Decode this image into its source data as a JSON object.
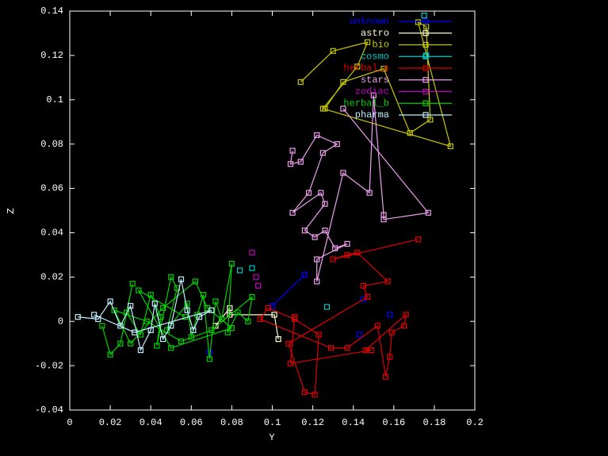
{
  "chart_data": {
    "type": "scatter",
    "x_label": "Y",
    "y_label": "Z",
    "xlim": [
      0,
      0.2
    ],
    "xticks": [
      0,
      0.02,
      0.04,
      0.06,
      0.08,
      0.1,
      0.12,
      0.14,
      0.16,
      0.18,
      0.2
    ],
    "ylim": [
      -0.04,
      0.14
    ],
    "yticks": [
      -0.04,
      -0.02,
      0,
      0.02,
      0.04,
      0.06,
      0.08,
      0.1,
      0.12,
      0.14
    ],
    "legend": "top-right",
    "series": [
      {
        "name": "unknown",
        "color": "#0000ff",
        "x": [
          0.1,
          0.116,
          null,
          0.145,
          null,
          0.158,
          null,
          0.143,
          null,
          0.069
        ],
        "values": [
          0.007,
          0.021,
          null,
          0.01,
          null,
          0.003,
          null,
          -0.006,
          null,
          -0.014
        ]
      },
      {
        "name": "astro",
        "color": "#ffffd0",
        "x": [
          0.072,
          0.079,
          0.079,
          0.101,
          0.103
        ],
        "values": [
          -0.002,
          0.006,
          0.003,
          0.003,
          -0.008
        ]
      },
      {
        "name": "bio",
        "color": "#c8c800",
        "x": [
          0.114,
          0.13,
          0.147,
          0.142,
          0.125,
          0.188,
          0.172,
          0.176,
          0.178,
          0.168,
          0.155,
          0.135,
          0.126
        ],
        "values": [
          0.108,
          0.122,
          0.126,
          0.115,
          0.096,
          0.079,
          0.135,
          0.133,
          0.091,
          0.085,
          0.114,
          0.108,
          0.096
        ]
      },
      {
        "name": "cosmo",
        "color": "#00c8c8",
        "x": [
          0.09,
          null,
          0.084,
          null,
          0.127,
          null,
          0.176,
          null,
          0.175
        ],
        "values": [
          0.024,
          null,
          0.023,
          null,
          0.0065,
          null,
          0.12,
          null,
          0.138
        ]
      },
      {
        "name": "herbal_a",
        "color": "#e00000",
        "x": [
          0.172,
          0.13,
          0.137,
          0.142,
          0.157,
          0.145,
          0.147,
          0.108,
          0.116,
          0.121,
          0.123,
          0.111,
          0.098,
          0.094,
          0.129,
          0.137,
          0.152,
          0.156,
          0.158,
          0.159,
          0.165,
          0.166,
          0.146,
          0.149,
          0.109,
          0.111
        ],
        "values": [
          0.037,
          0.028,
          0.03,
          0.031,
          0.018,
          0.016,
          0.011,
          -0.01,
          -0.032,
          -0.033,
          -0.006,
          0.001,
          0.006,
          0.001,
          -0.012,
          -0.012,
          -0.002,
          -0.025,
          -0.016,
          -0.005,
          -0.002,
          0.003,
          -0.013,
          -0.013,
          -0.019,
          0.002
        ]
      },
      {
        "name": "stars",
        "color": "#f0a0f0",
        "x": [
          0.11,
          0.109,
          0.114,
          0.122,
          0.132,
          0.125,
          0.118,
          0.11,
          0.124,
          0.126,
          0.116,
          0.121,
          0.126,
          0.131,
          0.137,
          0.122,
          0.122,
          0.135,
          0.148,
          0.15,
          0.155,
          0.155,
          0.177,
          0.135
        ],
        "values": [
          0.077,
          0.071,
          0.072,
          0.084,
          0.08,
          0.076,
          0.058,
          0.049,
          0.058,
          0.053,
          0.041,
          0.038,
          0.041,
          0.033,
          0.035,
          0.028,
          0.018,
          0.067,
          0.058,
          0.102,
          0.048,
          0.046,
          0.049,
          0.096
        ]
      },
      {
        "name": "zodiac",
        "color": "#c000c0",
        "x": [
          0.09,
          null,
          0.092,
          null,
          0.093
        ],
        "values": [
          0.031,
          null,
          0.02,
          null,
          0.016
        ]
      },
      {
        "name": "herbal_b",
        "color": "#00d000",
        "x": [
          0.016,
          0.02,
          0.025,
          0.031,
          0.028,
          0.035,
          0.04,
          0.045,
          0.043,
          0.05,
          0.053,
          0.048,
          0.058,
          0.06,
          0.063,
          0.066,
          0.069,
          0.072,
          0.075,
          0.08,
          0.078,
          0.083,
          0.088,
          0.09,
          0.07,
          0.055,
          0.038,
          0.022,
          0.03,
          0.046,
          0.062,
          0.068,
          0.08,
          0.05,
          0.034,
          0.057
        ],
        "values": [
          -0.002,
          -0.015,
          -0.01,
          0.017,
          0.004,
          -0.006,
          0.012,
          0.002,
          -0.011,
          0.02,
          0.015,
          -0.004,
          0.008,
          -0.007,
          0.003,
          0.012,
          -0.017,
          0.009,
          0.001,
          0.026,
          -0.005,
          0.004,
          0.0,
          0.011,
          -0.004,
          -0.009,
          0.0,
          0.005,
          -0.01,
          0.006,
          0.018,
          0.006,
          -0.003,
          -0.012,
          0.014,
          0.002
        ]
      },
      {
        "name": "pharma",
        "color": "#c0f0ff",
        "x": [
          0.004,
          0.014,
          0.02,
          0.025,
          0.03,
          0.035,
          0.04,
          0.042,
          0.046,
          0.05,
          0.055,
          0.058,
          0.061,
          0.064,
          0.07,
          0.032,
          0.012
        ],
        "values": [
          0.002,
          0.001,
          0.009,
          -0.002,
          0.007,
          -0.013,
          -0.004,
          0.008,
          -0.008,
          -0.002,
          0.019,
          0.005,
          -0.004,
          0.002,
          0.005,
          -0.005,
          0.003
        ]
      }
    ]
  }
}
